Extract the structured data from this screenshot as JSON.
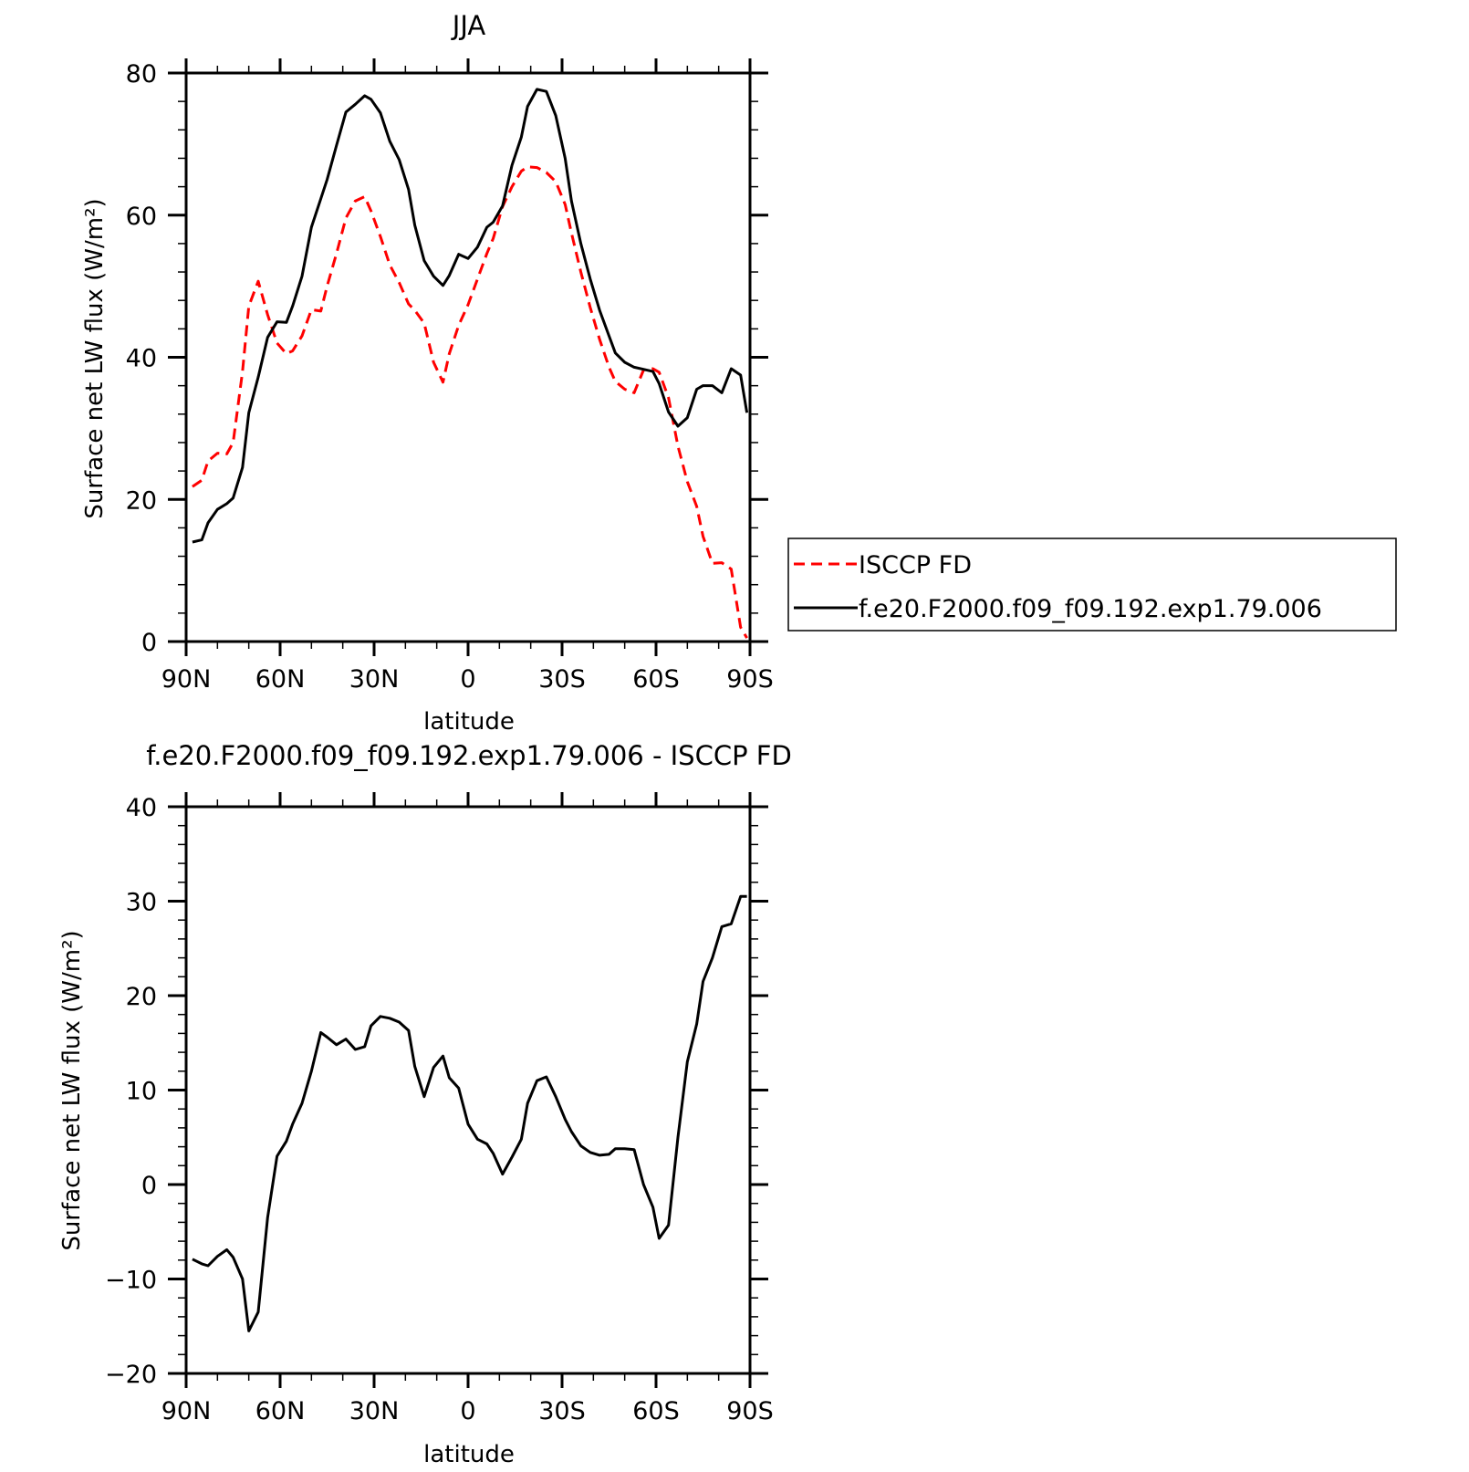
{
  "chart_data": [
    {
      "type": "line",
      "title": "JJA",
      "xlabel": "latitude",
      "ylabel": "Surface net LW flux (W/m²)",
      "ylim": [
        0,
        80
      ],
      "xlim": [
        -90,
        90
      ],
      "x_ticks": [
        {
          "value": -90,
          "label": "90N"
        },
        {
          "value": -60,
          "label": "60N"
        },
        {
          "value": -30,
          "label": "30N"
        },
        {
          "value": 0,
          "label": "0"
        },
        {
          "value": 30,
          "label": "30S"
        },
        {
          "value": 60,
          "label": "60S"
        },
        {
          "value": 90,
          "label": "90S"
        }
      ],
      "y_ticks": [
        0,
        20,
        40,
        60,
        80
      ],
      "legend_position": "right",
      "series": [
        {
          "name": "ISCCP FD",
          "color": "#ff0000",
          "style": "dashed",
          "x": [
            -88,
            -85,
            -83,
            -80,
            -77,
            -75,
            -72,
            -70,
            -67,
            -64,
            -61,
            -58,
            -56,
            -53,
            -50,
            -47,
            -45,
            -42,
            -39,
            -36,
            -33,
            -31,
            -28,
            -25,
            -22,
            -19,
            -17,
            -14,
            -11,
            -8,
            -6,
            -3,
            0,
            3,
            6,
            8,
            11,
            14,
            17,
            19,
            22,
            25,
            28,
            31,
            33,
            36,
            39,
            42,
            45,
            47,
            50,
            53,
            56,
            59,
            61,
            64,
            67,
            70,
            73,
            75,
            78,
            81,
            84,
            87,
            89
          ],
          "values": [
            21.8,
            22.7,
            25.4,
            26.5,
            26.4,
            28.0,
            38.0,
            47.2,
            50.7,
            46.0,
            42.0,
            40.5,
            40.9,
            43.0,
            46.7,
            46.5,
            50.0,
            54.6,
            59.6,
            62.0,
            62.6,
            60.6,
            57.0,
            53.0,
            50.5,
            47.5,
            46.6,
            44.8,
            39.3,
            36.5,
            40.5,
            44.5,
            47.4,
            51.0,
            54.6,
            56.7,
            61.2,
            64.0,
            66.2,
            66.8,
            66.7,
            66.0,
            64.7,
            61.5,
            57.5,
            52.0,
            47.0,
            42.5,
            38.6,
            36.6,
            35.5,
            35.0,
            38.2,
            38.4,
            37.9,
            34.3,
            27.5,
            22.5,
            19.0,
            14.8,
            11.0,
            11.1,
            10.2,
            2.0,
            0.5
          ]
        },
        {
          "name": "f.e20.F2000.f09_f09.192.exp1.79.006",
          "color": "#000000",
          "style": "solid",
          "x": [
            -88,
            -85,
            -83,
            -80,
            -77,
            -75,
            -72,
            -70,
            -67,
            -64,
            -61,
            -58,
            -56,
            -53,
            -50,
            -47,
            -45,
            -42,
            -39,
            -36,
            -33,
            -31,
            -28,
            -25,
            -22,
            -19,
            -17,
            -14,
            -11,
            -8,
            -6,
            -3,
            0,
            3,
            6,
            8,
            11,
            14,
            17,
            19,
            22,
            25,
            28,
            31,
            33,
            36,
            39,
            42,
            45,
            47,
            50,
            53,
            56,
            59,
            61,
            64,
            67,
            70,
            73,
            75,
            78,
            81,
            84,
            87,
            89
          ],
          "values": [
            14.0,
            14.3,
            16.7,
            18.6,
            19.4,
            20.2,
            24.5,
            32.2,
            37.2,
            42.8,
            45.0,
            44.9,
            47.2,
            51.4,
            58.3,
            62.3,
            65.0,
            69.8,
            74.5,
            75.6,
            76.8,
            76.3,
            74.4,
            70.4,
            67.8,
            63.6,
            58.6,
            53.6,
            51.4,
            50.1,
            51.5,
            54.5,
            53.9,
            55.5,
            58.3,
            59.0,
            61.3,
            67.0,
            71.0,
            75.3,
            77.7,
            77.4,
            74.0,
            68.0,
            62.0,
            56.0,
            51.0,
            46.6,
            43.0,
            40.6,
            39.3,
            38.6,
            38.3,
            38.0,
            36.3,
            32.3,
            30.3,
            31.5,
            35.5,
            36.0,
            36.0,
            35.0,
            38.4,
            37.5,
            32.2
          ]
        }
      ]
    },
    {
      "type": "line",
      "title": "f.e20.F2000.f09_f09.192.exp1.79.006 - ISCCP FD",
      "xlabel": "latitude",
      "ylabel": "Surface net LW flux (W/m²)",
      "ylim": [
        -20,
        40
      ],
      "xlim": [
        -90,
        90
      ],
      "x_ticks": [
        {
          "value": -90,
          "label": "90N"
        },
        {
          "value": -60,
          "label": "60N"
        },
        {
          "value": -30,
          "label": "30N"
        },
        {
          "value": 0,
          "label": "0"
        },
        {
          "value": 30,
          "label": "30S"
        },
        {
          "value": 60,
          "label": "60S"
        },
        {
          "value": 90,
          "label": "90S"
        }
      ],
      "y_ticks": [
        -20,
        -10,
        0,
        10,
        20,
        30,
        40
      ],
      "series": [
        {
          "color": "#000000",
          "style": "solid",
          "x": [
            -88,
            -85,
            -83,
            -80,
            -77,
            -75,
            -72,
            -70,
            -67,
            -64,
            -61,
            -58,
            -56,
            -53,
            -50,
            -47,
            -45,
            -42,
            -39,
            -36,
            -33,
            -31,
            -28,
            -25,
            -22,
            -19,
            -17,
            -14,
            -11,
            -8,
            -6,
            -3,
            0,
            3,
            6,
            8,
            11,
            14,
            17,
            19,
            22,
            25,
            28,
            31,
            33,
            36,
            39,
            42,
            45,
            47,
            50,
            53,
            56,
            59,
            61,
            64,
            67,
            70,
            73,
            75,
            78,
            81,
            84,
            87,
            89
          ],
          "values": [
            -7.9,
            -8.4,
            -8.6,
            -7.6,
            -6.9,
            -7.7,
            -10.0,
            -15.5,
            -13.5,
            -3.5,
            3.0,
            4.6,
            6.4,
            8.6,
            12.0,
            16.1,
            15.6,
            14.8,
            15.4,
            14.3,
            14.6,
            16.8,
            17.8,
            17.6,
            17.2,
            16.3,
            12.5,
            9.3,
            12.4,
            13.6,
            11.3,
            10.2,
            6.4,
            4.8,
            4.3,
            3.3,
            1.1,
            2.9,
            4.8,
            8.6,
            11.0,
            11.4,
            9.3,
            6.9,
            5.6,
            4.1,
            3.4,
            3.1,
            3.2,
            3.8,
            3.8,
            3.7,
            0.0,
            -2.4,
            -5.7,
            -4.3,
            5.0,
            13.0,
            17.0,
            21.5,
            24.0,
            27.3,
            27.6,
            30.5,
            30.5
          ]
        }
      ]
    }
  ]
}
